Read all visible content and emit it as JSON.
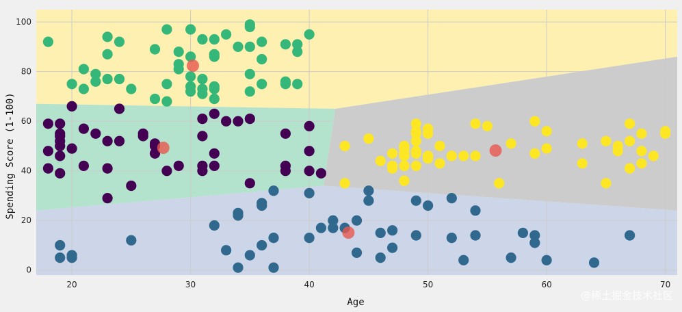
{
  "chart_data": {
    "type": "scatter",
    "title": "",
    "xlabel": "Age",
    "ylabel": "Spending Score (1-100)",
    "xlim": [
      17,
      71
    ],
    "ylim": [
      -2,
      105
    ],
    "xticks": [
      20,
      30,
      40,
      50,
      60,
      70
    ],
    "yticks": [
      0,
      20,
      40,
      60,
      80,
      100
    ],
    "grid": true,
    "watermark": "@稀土掘金技术社区",
    "colors": {
      "background": "#f0f0f0",
      "grid": "#cbcbcb",
      "region_top": "#fdf0b0",
      "region_left": "#b3e3cc",
      "region_right": "#cccccc",
      "region_bottom": "#ccd6e8",
      "centroid": "#e8584f"
    },
    "regions": [
      {
        "name": "region-top",
        "color": "#fdf0b0",
        "polygon": [
          [
            17,
            105
          ],
          [
            71,
            105
          ],
          [
            71,
            86
          ],
          [
            42.2,
            65
          ],
          [
            17,
            67
          ]
        ]
      },
      {
        "name": "region-left",
        "color": "#b3e3cc",
        "polygon": [
          [
            17,
            67
          ],
          [
            42.2,
            65
          ],
          [
            41.2,
            34
          ],
          [
            17,
            24
          ]
        ]
      },
      {
        "name": "region-right",
        "color": "#cccccc",
        "polygon": [
          [
            42.2,
            65
          ],
          [
            71,
            86
          ],
          [
            71,
            24
          ],
          [
            41.2,
            34
          ]
        ]
      },
      {
        "name": "region-bottom",
        "color": "#ccd6e8",
        "polygon": [
          [
            17,
            24
          ],
          [
            41.2,
            34
          ],
          [
            71,
            24
          ],
          [
            71,
            -2
          ],
          [
            17,
            -2
          ]
        ]
      }
    ],
    "series": [
      {
        "color": "#35b779",
        "points": [
          [
            18,
            92
          ],
          [
            20,
            75
          ],
          [
            21,
            81
          ],
          [
            21,
            73
          ],
          [
            22,
            79
          ],
          [
            22,
            76
          ],
          [
            23,
            94
          ],
          [
            23,
            87
          ],
          [
            23,
            77
          ],
          [
            24,
            92
          ],
          [
            24,
            77
          ],
          [
            25,
            73
          ],
          [
            27,
            89
          ],
          [
            27,
            69
          ],
          [
            28,
            97
          ],
          [
            28,
            75
          ],
          [
            28,
            68
          ],
          [
            29,
            88
          ],
          [
            29,
            83
          ],
          [
            29,
            81
          ],
          [
            30,
            97
          ],
          [
            30,
            86
          ],
          [
            30,
            78
          ],
          [
            30,
            74
          ],
          [
            30,
            72
          ],
          [
            31,
            93
          ],
          [
            31,
            77
          ],
          [
            31,
            73
          ],
          [
            31,
            71
          ],
          [
            32,
            93
          ],
          [
            32,
            87
          ],
          [
            32,
            86
          ],
          [
            32,
            74
          ],
          [
            32,
            73
          ],
          [
            32,
            69
          ],
          [
            33,
            95
          ],
          [
            34,
            90
          ],
          [
            35,
            99
          ],
          [
            35,
            98
          ],
          [
            35,
            90
          ],
          [
            35,
            79
          ],
          [
            35,
            72
          ],
          [
            36,
            92
          ],
          [
            36,
            85
          ],
          [
            36,
            75
          ],
          [
            38,
            91
          ],
          [
            38,
            76
          ],
          [
            38,
            75
          ],
          [
            39,
            91
          ],
          [
            39,
            88
          ],
          [
            39,
            75
          ],
          [
            40,
            95
          ]
        ]
      },
      {
        "color": "#440154",
        "points": [
          [
            18,
            59
          ],
          [
            18,
            48
          ],
          [
            18,
            41
          ],
          [
            19,
            59
          ],
          [
            19,
            55
          ],
          [
            19,
            54
          ],
          [
            19,
            52
          ],
          [
            19,
            50
          ],
          [
            19,
            46
          ],
          [
            19,
            39
          ],
          [
            20,
            66
          ],
          [
            20,
            49
          ],
          [
            21,
            57
          ],
          [
            21,
            42
          ],
          [
            22,
            55
          ],
          [
            23,
            52
          ],
          [
            23,
            41
          ],
          [
            23,
            29
          ],
          [
            24,
            65
          ],
          [
            24,
            52
          ],
          [
            25,
            34
          ],
          [
            26,
            55
          ],
          [
            26,
            54
          ],
          [
            27,
            51
          ],
          [
            27,
            50
          ],
          [
            27,
            47
          ],
          [
            28,
            40
          ],
          [
            29,
            42
          ],
          [
            31,
            61
          ],
          [
            31,
            54
          ],
          [
            31,
            42
          ],
          [
            31,
            40
          ],
          [
            32,
            63
          ],
          [
            32,
            47
          ],
          [
            32,
            42
          ],
          [
            33,
            60
          ],
          [
            34,
            60
          ],
          [
            35,
            61
          ],
          [
            35,
            35
          ],
          [
            38,
            55
          ],
          [
            38,
            42
          ],
          [
            38,
            40
          ],
          [
            40,
            58
          ],
          [
            40,
            48
          ],
          [
            40,
            40
          ],
          [
            41,
            39
          ]
        ]
      },
      {
        "color": "#fde725",
        "points": [
          [
            43,
            50
          ],
          [
            43,
            35
          ],
          [
            45,
            53
          ],
          [
            46,
            44
          ],
          [
            47,
            47
          ],
          [
            47,
            42
          ],
          [
            47,
            41
          ],
          [
            48,
            50
          ],
          [
            48,
            49
          ],
          [
            48,
            47
          ],
          [
            48,
            46
          ],
          [
            48,
            42
          ],
          [
            48,
            36
          ],
          [
            49,
            59
          ],
          [
            49,
            56
          ],
          [
            49,
            55
          ],
          [
            49,
            52
          ],
          [
            49,
            48
          ],
          [
            49,
            47
          ],
          [
            49,
            42
          ],
          [
            50,
            57
          ],
          [
            50,
            55
          ],
          [
            50,
            46
          ],
          [
            50,
            45
          ],
          [
            51,
            50
          ],
          [
            51,
            43
          ],
          [
            52,
            46
          ],
          [
            53,
            46
          ],
          [
            54,
            59
          ],
          [
            54,
            46
          ],
          [
            55,
            58
          ],
          [
            56,
            35
          ],
          [
            57,
            51
          ],
          [
            59,
            60
          ],
          [
            59,
            47
          ],
          [
            60,
            56
          ],
          [
            60,
            49
          ],
          [
            63,
            51
          ],
          [
            63,
            43
          ],
          [
            65,
            52
          ],
          [
            65,
            35
          ],
          [
            66,
            50
          ],
          [
            66,
            48
          ],
          [
            67,
            59
          ],
          [
            67,
            52
          ],
          [
            67,
            41
          ],
          [
            68,
            55
          ],
          [
            68,
            48
          ],
          [
            68,
            43
          ],
          [
            69,
            46
          ],
          [
            70,
            56
          ],
          [
            70,
            55
          ]
        ]
      },
      {
        "color": "#31688e",
        "points": [
          [
            19,
            10
          ],
          [
            19,
            5
          ],
          [
            20,
            6
          ],
          [
            20,
            5
          ],
          [
            25,
            12
          ],
          [
            32,
            18
          ],
          [
            33,
            8
          ],
          [
            34,
            23
          ],
          [
            34,
            22
          ],
          [
            34,
            1
          ],
          [
            35,
            6
          ],
          [
            36,
            27
          ],
          [
            36,
            26
          ],
          [
            36,
            10
          ],
          [
            37,
            32
          ],
          [
            37,
            13
          ],
          [
            37,
            1
          ],
          [
            40,
            31
          ],
          [
            40,
            13
          ],
          [
            41,
            17
          ],
          [
            42,
            20
          ],
          [
            42,
            17
          ],
          [
            43,
            17
          ],
          [
            44,
            20
          ],
          [
            44,
            7
          ],
          [
            45,
            32
          ],
          [
            45,
            28
          ],
          [
            46,
            15
          ],
          [
            46,
            5
          ],
          [
            47,
            16
          ],
          [
            47,
            9
          ],
          [
            49,
            28
          ],
          [
            49,
            14
          ],
          [
            50,
            26
          ],
          [
            52,
            29
          ],
          [
            52,
            13
          ],
          [
            53,
            4
          ],
          [
            54,
            24
          ],
          [
            54,
            14
          ],
          [
            57,
            5
          ],
          [
            58,
            15
          ],
          [
            59,
            14
          ],
          [
            59,
            11
          ],
          [
            60,
            4
          ],
          [
            64,
            3
          ],
          [
            67,
            14
          ]
        ]
      }
    ],
    "centroids": [
      [
        30.2,
        82.4
      ],
      [
        27.7,
        49.3
      ],
      [
        55.7,
        48.2
      ],
      [
        43.3,
        15.1
      ]
    ]
  }
}
